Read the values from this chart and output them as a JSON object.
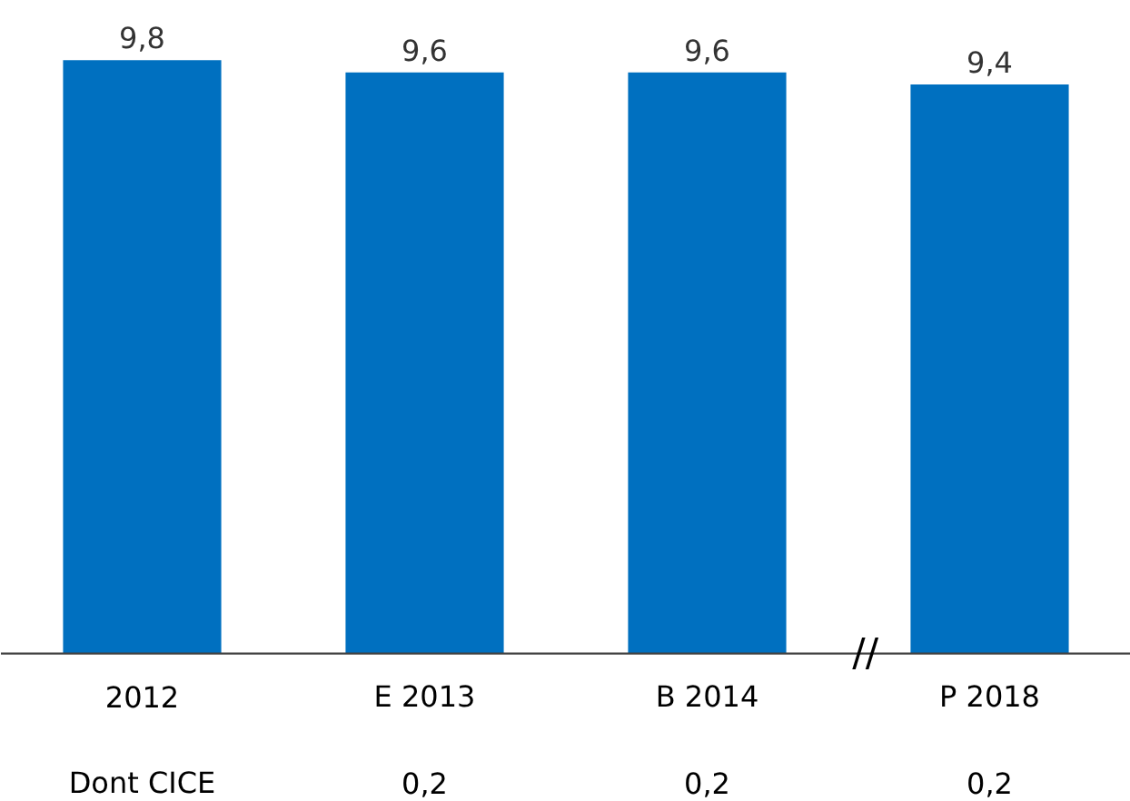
{
  "chart_data": {
    "type": "bar",
    "categories": [
      "2012",
      "E 2013",
      "B 2014",
      "P 2018"
    ],
    "values": [
      9.8,
      9.6,
      9.6,
      9.4
    ],
    "color": "#0070c0",
    "value_labels": [
      "9,8",
      "9,6",
      "9,6",
      "9,4"
    ],
    "annotations": [
      "Dont CICE",
      "0,2",
      "0,2",
      "0,2",
      "//"
    ],
    "grid": false
  }
}
